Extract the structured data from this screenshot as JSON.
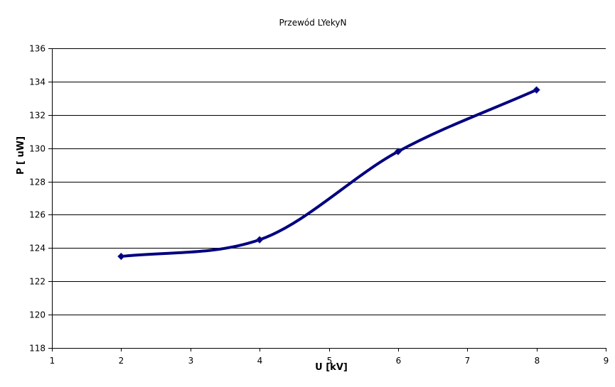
{
  "chart_data": {
    "type": "scatter",
    "title": "Przewód LYekyN",
    "xlabel": "U  [kV]",
    "ylabel": "P  [ uW]",
    "xlim": [
      1,
      9
    ],
    "ylim": [
      118,
      136
    ],
    "x_ticks": [
      "1",
      "2",
      "3",
      "4",
      "5",
      "6",
      "7",
      "8",
      "9"
    ],
    "y_ticks": [
      "118",
      "120",
      "122",
      "124",
      "126",
      "128",
      "130",
      "132",
      "134",
      "136"
    ],
    "grid": "horizontal",
    "smooth_line": true,
    "series": [
      {
        "x": [
          2,
          4,
          6,
          8
        ],
        "y": [
          123.5,
          124.5,
          129.8,
          133.5
        ],
        "color": "#000080",
        "marker": "diamond"
      }
    ]
  }
}
